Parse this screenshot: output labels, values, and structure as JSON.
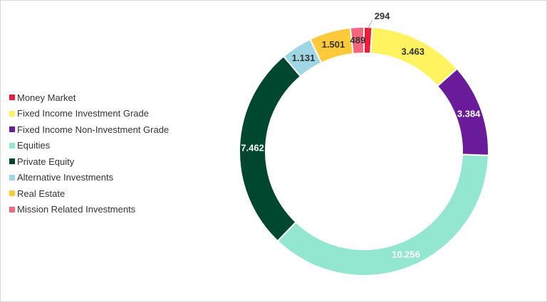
{
  "chart_data": {
    "type": "pie",
    "title": "",
    "legend_position": "left",
    "categories": [
      "Money Market",
      "Fixed Income Investment Grade",
      "Fixed Income Non-Investment Grade",
      "Equities",
      "Private Equity",
      "Alternative Investments",
      "Real Estate",
      "Mission Related Investments"
    ],
    "values": [
      294,
      3463,
      3384,
      10256,
      7462,
      1131,
      1501,
      489
    ],
    "data_labels": [
      "294",
      "3.463",
      "3.384",
      "10.256",
      "7.462",
      "1.131",
      "1.501",
      "489"
    ],
    "colors": [
      "#ee1c3a",
      "#fff35f",
      "#6a1b9a",
      "#93e6cf",
      "#004730",
      "#9fd6e3",
      "#ffc93c",
      "#f4657e"
    ],
    "label_colors": [
      "#333333",
      "#333333",
      "#ffffff",
      "#ffffff",
      "#ffffff",
      "#333333",
      "#333333",
      "#333333"
    ]
  }
}
